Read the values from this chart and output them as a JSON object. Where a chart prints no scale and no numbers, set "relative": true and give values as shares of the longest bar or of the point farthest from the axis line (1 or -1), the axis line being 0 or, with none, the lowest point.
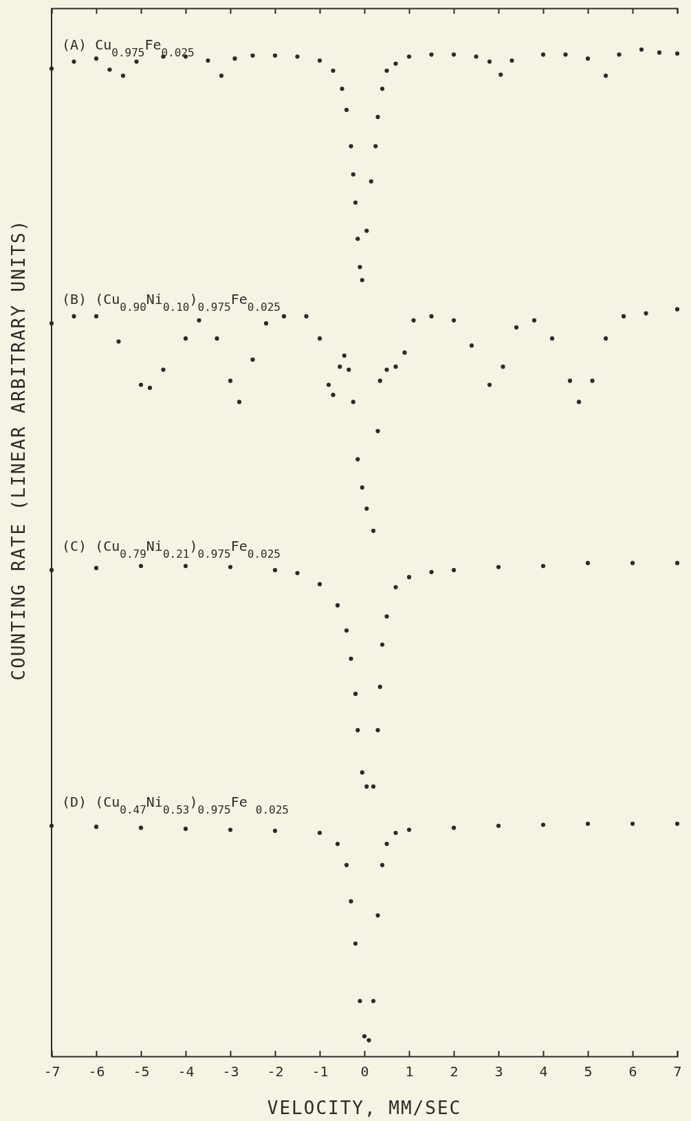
{
  "chart_data": {
    "type": "scatter",
    "xlabel": "VELOCITY, MM/SEC",
    "ylabel": "COUNTING RATE (LINEAR ARBITRARY UNITS)",
    "relative": true,
    "marker": "circle",
    "tick_labels": "x",
    "grid": false,
    "xlim": [
      -7,
      7
    ],
    "xticks": [
      -7,
      -6,
      -5,
      -4,
      -3,
      -2,
      -1,
      0,
      1,
      2,
      3,
      4,
      5,
      6,
      7
    ],
    "series": [
      {
        "name": "(A) Cu$_{0.975}$Fe$_{0.025}$",
        "color": "#2e2a28",
        "x": [
          -7,
          -6.5,
          -6,
          -5.7,
          -5.4,
          -5.1,
          -4.5,
          -4,
          -3.5,
          -3.2,
          -2.9,
          -2.5,
          -2,
          -1.5,
          -1,
          -0.7,
          -0.5,
          -0.4,
          -0.3,
          -0.25,
          -0.2,
          -0.15,
          -0.1,
          -0.05,
          0.05,
          0.15,
          0.25,
          0.3,
          0.4,
          0.5,
          0.7,
          1,
          1.5,
          2,
          2.5,
          2.8,
          3.05,
          3.3,
          4,
          4.5,
          5,
          5.4,
          5.7,
          6.2,
          6.6,
          7
        ],
        "values": [
          0.981,
          0.988,
          0.991,
          0.98,
          0.974,
          0.988,
          0.993,
          0.993,
          0.989,
          0.974,
          0.991,
          0.994,
          0.994,
          0.993,
          0.989,
          0.979,
          0.961,
          0.94,
          0.904,
          0.876,
          0.848,
          0.812,
          0.784,
          0.771,
          0.82,
          0.869,
          0.904,
          0.933,
          0.961,
          0.979,
          0.986,
          0.993,
          0.995,
          0.995,
          0.993,
          0.988,
          0.975,
          0.989,
          0.995,
          0.995,
          0.991,
          0.974,
          0.995,
          1,
          0.997,
          0.996
        ]
      },
      {
        "name": "(B) (Cu$_{0.90}$Ni$_{0.10}$)$_{0.975}$Fe$_{0.025}$",
        "color": "#2e2a28",
        "x": [
          -7,
          -6.5,
          -6,
          -5.5,
          -5,
          -4.8,
          -4.5,
          -4,
          -3.7,
          -3.3,
          -3,
          -2.8,
          -2.5,
          -2.2,
          -1.8,
          -1.3,
          -1,
          -0.8,
          -0.7,
          -0.55,
          -0.45,
          -0.35,
          -0.25,
          -0.15,
          -0.05,
          0.05,
          0.2,
          0.3,
          0.35,
          0.5,
          0.7,
          0.9,
          1.1,
          1.5,
          2,
          2.4,
          2.8,
          3.1,
          3.4,
          3.8,
          4.2,
          4.6,
          4.8,
          5.1,
          5.4,
          5.8,
          6.3,
          7
        ],
        "values": [
          0.728,
          0.735,
          0.735,
          0.71,
          0.667,
          0.664,
          0.682,
          0.713,
          0.731,
          0.713,
          0.671,
          0.65,
          0.692,
          0.728,
          0.735,
          0.735,
          0.713,
          0.667,
          0.657,
          0.685,
          0.696,
          0.682,
          0.65,
          0.593,
          0.565,
          0.544,
          0.522,
          0.621,
          0.671,
          0.682,
          0.685,
          0.699,
          0.731,
          0.735,
          0.731,
          0.706,
          0.667,
          0.685,
          0.724,
          0.731,
          0.713,
          0.671,
          0.65,
          0.671,
          0.713,
          0.735,
          0.738,
          0.742
        ]
      },
      {
        "name": "(C) (Cu$_{0.79}$Ni$_{0.21}$)$_{0.975}$Fe$_{0.025}$",
        "color": "#2e2a28",
        "x": [
          -7,
          -6,
          -5,
          -4,
          -3,
          -2,
          -1.5,
          -1,
          -0.6,
          -0.4,
          -0.3,
          -0.2,
          -0.15,
          -0.05,
          0.05,
          0.2,
          0.3,
          0.35,
          0.4,
          0.5,
          0.7,
          1,
          1.5,
          2,
          3,
          4,
          5,
          6,
          7
        ],
        "values": [
          0.483,
          0.485,
          0.487,
          0.487,
          0.486,
          0.483,
          0.48,
          0.469,
          0.448,
          0.423,
          0.395,
          0.36,
          0.324,
          0.282,
          0.268,
          0.268,
          0.324,
          0.367,
          0.409,
          0.437,
          0.466,
          0.476,
          0.481,
          0.483,
          0.486,
          0.487,
          0.49,
          0.49,
          0.49
        ]
      },
      {
        "name": "(D) (Cu$_{0.47}$Ni$_{0.53}$)$_{0.975}$Fe $_{0.025}$",
        "color": "#2e2a28",
        "x": [
          -7,
          -6,
          -5,
          -4,
          -3,
          -2,
          -1,
          -0.6,
          -0.4,
          -0.3,
          -0.2,
          -0.1,
          0,
          0.1,
          0.2,
          0.3,
          0.4,
          0.5,
          0.7,
          1,
          2,
          3,
          4,
          5,
          6,
          7
        ],
        "values": [
          0.229,
          0.228,
          0.227,
          0.226,
          0.225,
          0.224,
          0.222,
          0.211,
          0.19,
          0.154,
          0.112,
          0.055,
          0.02,
          0.016,
          0.055,
          0.14,
          0.19,
          0.211,
          0.222,
          0.225,
          0.227,
          0.229,
          0.23,
          0.231,
          0.231,
          0.231
        ]
      }
    ]
  }
}
